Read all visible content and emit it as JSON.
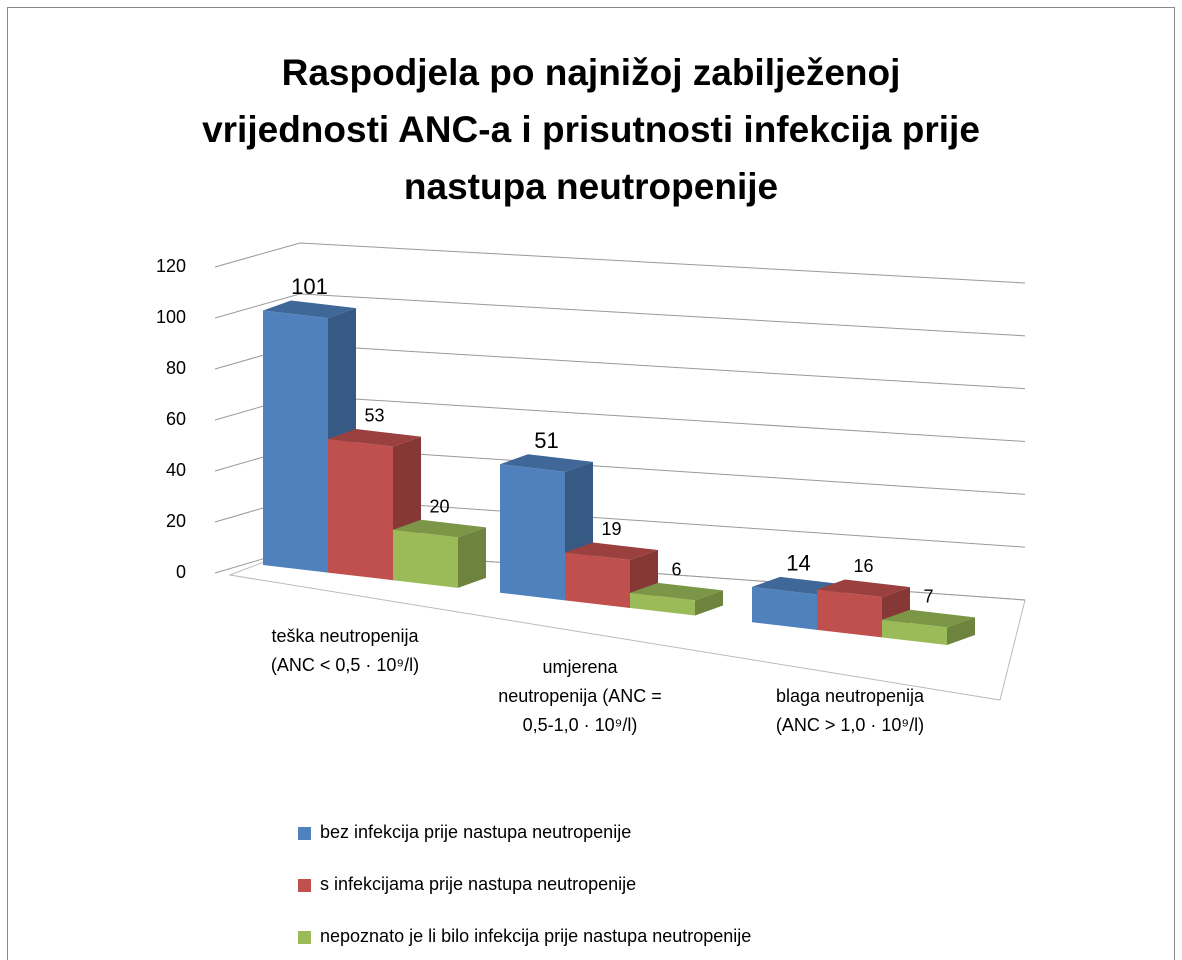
{
  "chart_data": {
    "type": "bar3d",
    "title": "Raspodjela po najnižoj zabilježenoj vrijednosti ANC-a i prisutnosti infekcija prije nastupa neutropenije",
    "categories": [
      "teška neutropenija (ANC < 0,5 · 10⁹/l)",
      "umjerena neutropenija (ANC = 0,5-1,0 · 10⁹/l)",
      "blaga neutropenija (ANC > 1,0 · 10⁹/l)"
    ],
    "series": [
      {
        "name": "bez infekcija prije nastupa neutropenije",
        "color": "#4f81bd",
        "values": [
          101,
          51,
          14
        ]
      },
      {
        "name": "s infekcijama prije nastupa neutropenije",
        "color": "#c0504d",
        "values": [
          53,
          19,
          16
        ]
      },
      {
        "name": "nepoznato je li bilo infekcija prije nastupa neutropenije",
        "color": "#9bbb59",
        "values": [
          20,
          6,
          7
        ]
      }
    ],
    "ylim": [
      0,
      120
    ],
    "yticks": [
      0,
      20,
      40,
      60,
      80,
      100,
      120
    ],
    "grid": true,
    "legend": "bottom"
  }
}
